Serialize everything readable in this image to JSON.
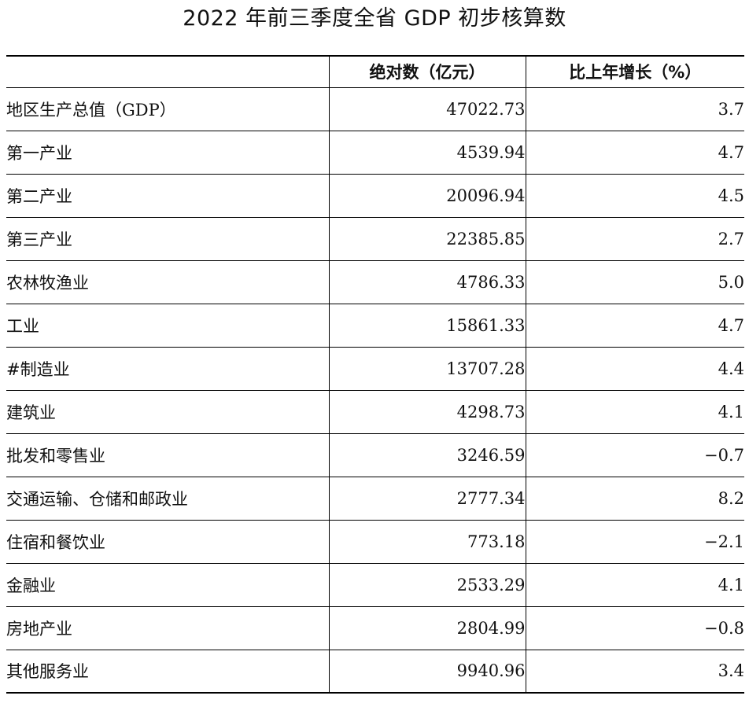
{
  "title": "2022 年前三季度全省 GDP 初步核算数",
  "table": {
    "headers": [
      "",
      "绝对数（亿元）",
      "比上年增长（%）"
    ],
    "rows": [
      {
        "name": "地区生产总值（GDP）",
        "value": "47022.73",
        "growth": "3.7"
      },
      {
        "name": "第一产业",
        "value": "4539.94",
        "growth": "4.7"
      },
      {
        "name": "第二产业",
        "value": "20096.94",
        "growth": "4.5"
      },
      {
        "name": "第三产业",
        "value": "22385.85",
        "growth": "2.7"
      },
      {
        "name": "农林牧渔业",
        "value": "4786.33",
        "growth": "5.0"
      },
      {
        "name": "工业",
        "value": "15861.33",
        "growth": "4.7"
      },
      {
        "name": "#制造业",
        "value": "13707.28",
        "growth": "4.4"
      },
      {
        "name": "建筑业",
        "value": "4298.73",
        "growth": "4.1"
      },
      {
        "name": "批发和零售业",
        "value": "3246.59",
        "growth": "−0.7"
      },
      {
        "name": "交通运输、仓储和邮政业",
        "value": "2777.34",
        "growth": "8.2"
      },
      {
        "name": "住宿和餐饮业",
        "value": "773.18",
        "growth": "−2.1"
      },
      {
        "name": "金融业",
        "value": "2533.29",
        "growth": "4.1"
      },
      {
        "name": "房地产业",
        "value": "2804.99",
        "growth": "−0.8"
      },
      {
        "name": "其他服务业",
        "value": "9940.96",
        "growth": "3.4"
      }
    ]
  }
}
